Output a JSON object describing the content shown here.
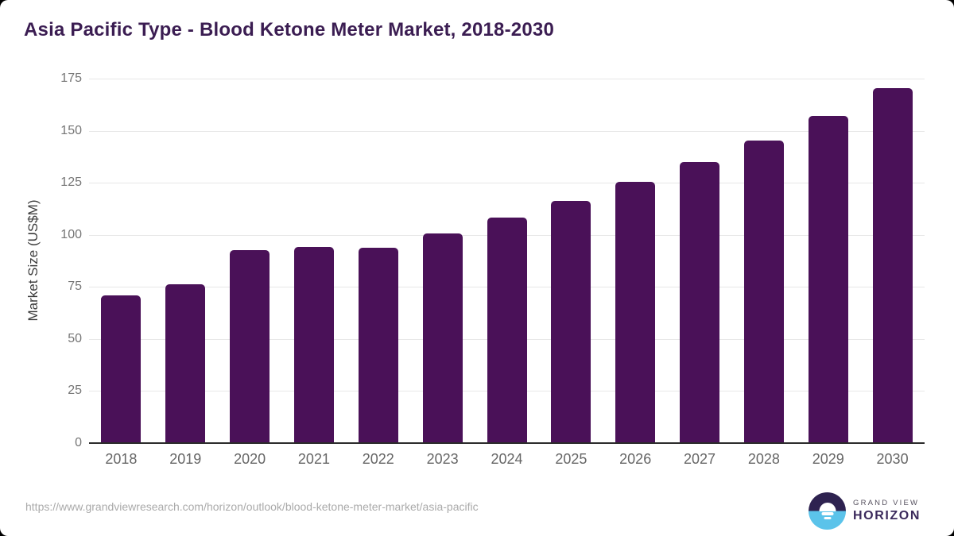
{
  "page": {
    "title": "Asia Pacific Type - Blood Ketone Meter Market, 2018-2030"
  },
  "chart_data": {
    "type": "bar",
    "title": "Asia Pacific Type - Blood Ketone Meter Market, 2018-2030",
    "categories": [
      "2018",
      "2019",
      "2020",
      "2021",
      "2022",
      "2023",
      "2024",
      "2025",
      "2026",
      "2027",
      "2028",
      "2029",
      "2030"
    ],
    "values": [
      71.0,
      76.2,
      92.6,
      94.3,
      93.8,
      100.5,
      108.2,
      116.2,
      125.3,
      134.9,
      145.3,
      157.2,
      170.4
    ],
    "xlabel": "",
    "ylabel": "Market Size (US$M)",
    "ylim": [
      0,
      175
    ],
    "yticks": [
      0,
      25,
      50,
      75,
      100,
      125,
      150,
      175
    ],
    "grid": true,
    "legend": "none",
    "bar_color": "#4a1158"
  },
  "footer": {
    "source_url": "https://www.grandviewresearch.com/horizon/outlook/blood-ketone-meter-market/asia-pacific",
    "logo": {
      "icon": "horizon-sun-icon",
      "brand_top": "GRAND VIEW",
      "brand_bottom": "HORIZON",
      "mark_top_color": "#2e2250",
      "mark_bottom_color": "#5bc3ea"
    }
  }
}
